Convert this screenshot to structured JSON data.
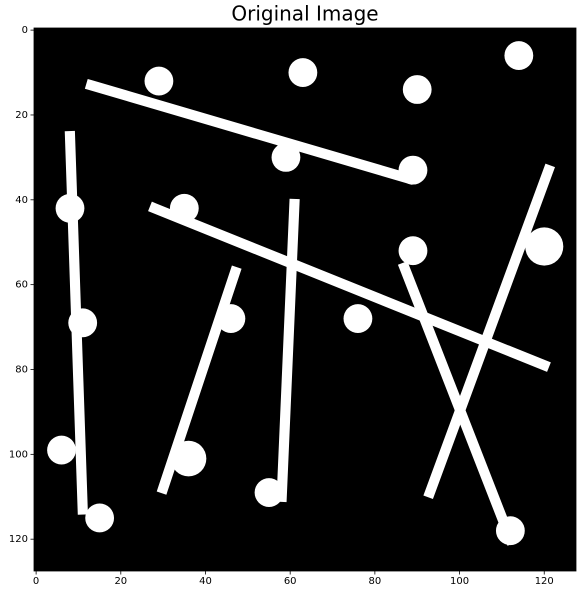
{
  "chart_data": {
    "type": "image",
    "title": "Original Image",
    "xlim": [
      -0.5,
      127.5
    ],
    "ylim": [
      127.5,
      -0.5
    ],
    "xticks": [
      0,
      20,
      40,
      60,
      80,
      100,
      120
    ],
    "yticks": [
      0,
      20,
      40,
      60,
      80,
      100,
      120
    ]
  }
}
